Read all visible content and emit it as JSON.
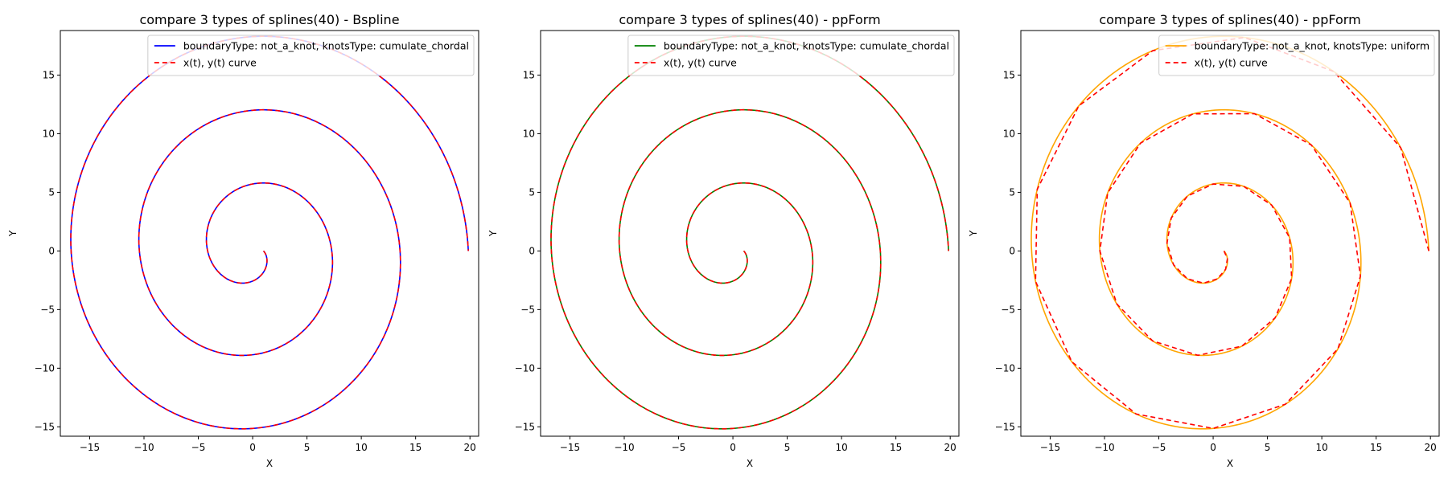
{
  "colors": {
    "bspline": "#0000ff",
    "ppform_chordal": "#008000",
    "ppform_uniform": "#ffa500",
    "reference": "#ff0000",
    "axes_edge": "#000000",
    "legend_edge": "#cccccc"
  },
  "chart_data": [
    {
      "type": "line",
      "title": "compare 3 types of splines(40) - Bspline",
      "xlabel": "X",
      "ylabel": "Y",
      "xlim": [
        -17.7,
        20.8
      ],
      "ylim": [
        -15.8,
        18.8
      ],
      "xticks": [
        -15,
        -10,
        -5,
        0,
        5,
        10,
        15,
        20
      ],
      "yticks": [
        -15,
        -10,
        -5,
        0,
        5,
        10,
        15
      ],
      "grid": false,
      "legend_position": "top-right",
      "curve": {
        "kind": "archimedean-spiral",
        "x_formula": "(t+1)*cos(t)",
        "y_formula": "(t+1)*sin(t)",
        "t_range": [
          0,
          6.283185307,
          1.0
        ],
        "knots": 40
      },
      "series": [
        {
          "name": "boundaryType: not_a_knot, knotsType: cumulate_chordal",
          "color": "#0000ff",
          "style": "solid",
          "sampling": "smooth"
        },
        {
          "name": "x(t), y(t) curve",
          "color": "#ff0000",
          "style": "dashed",
          "sampling": "smooth"
        }
      ]
    },
    {
      "type": "line",
      "title": "compare 3 types of splines(40) - ppForm",
      "xlabel": "X",
      "ylabel": "Y",
      "xlim": [
        -17.7,
        20.8
      ],
      "ylim": [
        -15.8,
        18.8
      ],
      "xticks": [
        -15,
        -10,
        -5,
        0,
        5,
        10,
        15,
        20
      ],
      "yticks": [
        -15,
        -10,
        -5,
        0,
        5,
        10,
        15
      ],
      "grid": false,
      "legend_position": "top-right",
      "curve": {
        "kind": "archimedean-spiral",
        "x_formula": "(t+1)*cos(t)",
        "y_formula": "(t+1)*sin(t)",
        "t_range": [
          0,
          6.283185307,
          1.0
        ],
        "knots": 40
      },
      "series": [
        {
          "name": "boundaryType: not_a_knot, knotsType: cumulate_chordal",
          "color": "#008000",
          "style": "solid",
          "sampling": "smooth"
        },
        {
          "name": "x(t), y(t) curve",
          "color": "#ff0000",
          "style": "dashed",
          "sampling": "smooth"
        }
      ]
    },
    {
      "type": "line",
      "title": "compare 3 types of splines(40) - ppForm",
      "xlabel": "X",
      "ylabel": "Y",
      "xlim": [
        -17.7,
        20.8
      ],
      "ylim": [
        -15.8,
        18.8
      ],
      "xticks": [
        -15,
        -10,
        -5,
        0,
        5,
        10,
        15,
        20
      ],
      "yticks": [
        -15,
        -10,
        -5,
        0,
        5,
        10,
        15
      ],
      "grid": false,
      "legend_position": "top-right",
      "curve": {
        "kind": "archimedean-spiral",
        "x_formula": "(t+1)*cos(t)",
        "y_formula": "(t+1)*sin(t)",
        "t_range": [
          0,
          6.283185307,
          1.0
        ],
        "knots": 40
      },
      "series": [
        {
          "name": "boundaryType: not_a_knot, knotsType: uniform",
          "color": "#ffa500",
          "style": "solid",
          "sampling": "smooth"
        },
        {
          "name": "x(t), y(t) curve",
          "color": "#ff0000",
          "style": "dashed",
          "sampling": "polyline-40"
        }
      ]
    }
  ]
}
